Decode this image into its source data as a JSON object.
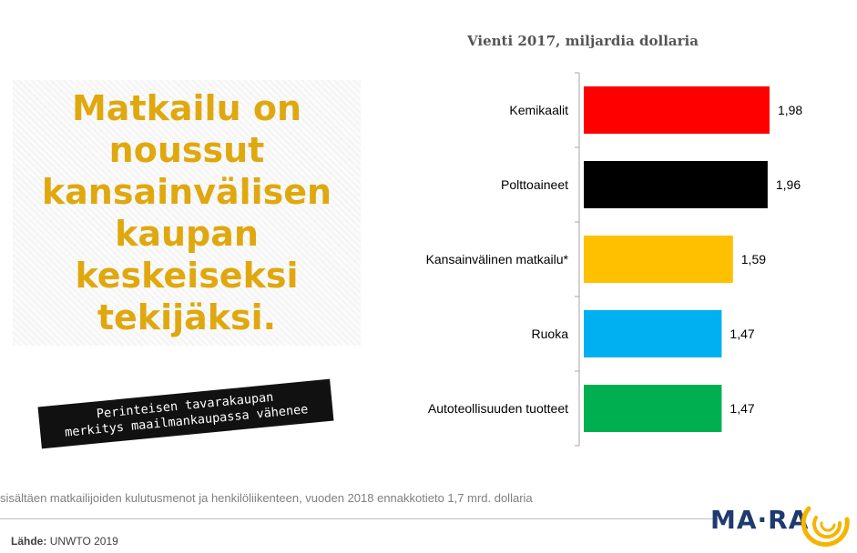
{
  "headline": "Matkailu on noussut kansainvälisen kaupan keskeiseksi tekijäksi.",
  "ribbon": "Perinteisen tavarakaupan\nmerkitys maailmankaupassa vähenee",
  "footnote": "sisältäen matkailijoiden kulutusmenot ja henkilöliikenteen, vuoden 2018 ennakkotieto 1,7 mrd. dollaria",
  "source": {
    "label": "Lähde:",
    "value": "UNWTO 2019"
  },
  "logo": {
    "text": "MA·RA",
    "accent": "#f5b400",
    "brand": "#1f3a6e"
  },
  "chart_data": {
    "type": "bar",
    "orientation": "horizontal",
    "title": "Vienti 2017, miljardia dollaria",
    "categories": [
      "Kemikaalit",
      "Polttoaineet",
      "Kansainvälinen matkailu*",
      "Ruoka",
      "Autoteollisuuden tuotteet"
    ],
    "values": [
      1.98,
      1.96,
      1.59,
      1.47,
      1.47
    ],
    "value_labels": [
      "1,98",
      "1,96",
      "1,59",
      "1,47",
      "1,47"
    ],
    "colors": [
      "#ff0000",
      "#000000",
      "#ffc000",
      "#00b0f0",
      "#00b050"
    ],
    "xlim": [
      0,
      2.5
    ],
    "grid": false,
    "legend": "none"
  }
}
